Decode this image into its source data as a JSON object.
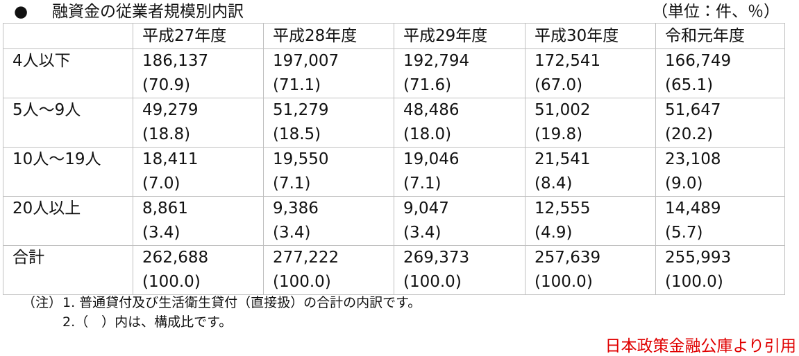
{
  "header": {
    "bullet": "●",
    "title": "融資金の従業者規模別内訳",
    "unit": "（単位：件、％）"
  },
  "table": {
    "columns": [
      "平成27年度",
      "平成28年度",
      "平成29年度",
      "平成30年度",
      "令和元年度"
    ],
    "rows": [
      {
        "label": "4人以下",
        "cells": [
          {
            "count": "186,137",
            "share": "(70.9)"
          },
          {
            "count": "197,007",
            "share": "(71.1)"
          },
          {
            "count": "192,794",
            "share": "(71.6)"
          },
          {
            "count": "172,541",
            "share": "(67.0)"
          },
          {
            "count": "166,749",
            "share": "(65.1)"
          }
        ]
      },
      {
        "label": "5人～9人",
        "cells": [
          {
            "count": "49,279",
            "share": "(18.8)"
          },
          {
            "count": "51,279",
            "share": "(18.5)"
          },
          {
            "count": "48,486",
            "share": "(18.0)"
          },
          {
            "count": "51,002",
            "share": "(19.8)"
          },
          {
            "count": "51,647",
            "share": "(20.2)"
          }
        ]
      },
      {
        "label": "10人～19人",
        "cells": [
          {
            "count": "18,411",
            "share": "(7.0)"
          },
          {
            "count": "19,550",
            "share": "(7.1)"
          },
          {
            "count": "19,046",
            "share": "(7.1)"
          },
          {
            "count": "21,541",
            "share": "(8.4)"
          },
          {
            "count": "23,108",
            "share": "(9.0)"
          }
        ]
      },
      {
        "label": "20人以上",
        "cells": [
          {
            "count": "8,861",
            "share": "(3.4)"
          },
          {
            "count": "9,386",
            "share": "(3.4)"
          },
          {
            "count": "9,047",
            "share": "(3.4)"
          },
          {
            "count": "12,555",
            "share": "(4.9)"
          },
          {
            "count": "14,489",
            "share": "(5.7)"
          }
        ]
      },
      {
        "label": "合計",
        "cells": [
          {
            "count": "262,688",
            "share": "(100.0)"
          },
          {
            "count": "277,222",
            "share": "(100.0)"
          },
          {
            "count": "269,373",
            "share": "(100.0)"
          },
          {
            "count": "257,639",
            "share": "(100.0)"
          },
          {
            "count": "255,993",
            "share": "(100.0)"
          }
        ]
      }
    ]
  },
  "notes": {
    "label": "（注）",
    "items": [
      "1. 普通貸付及び生活衛生貸付（直接扱）の合計の内訳です。",
      "2.（　）内は、構成比です。"
    ]
  },
  "source": "日本政策金融公庫より引用"
}
